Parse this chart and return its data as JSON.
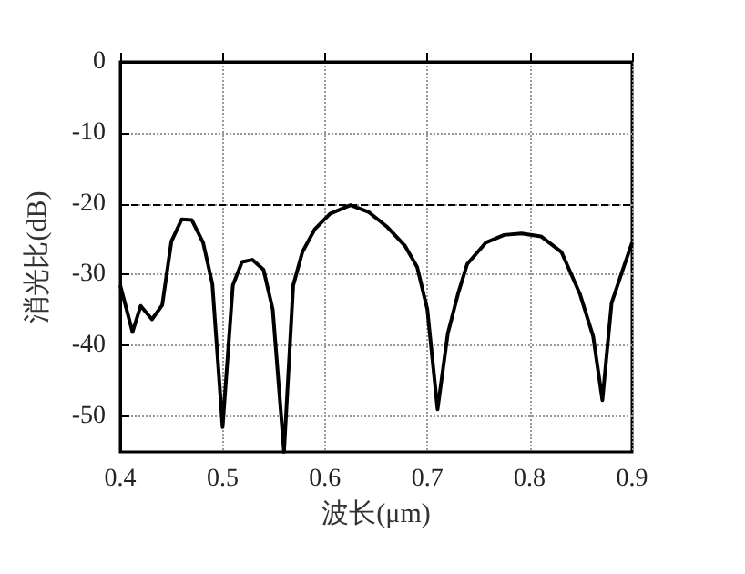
{
  "chart_data": {
    "type": "line",
    "xlabel": "波长(μm)",
    "ylabel": "消光比(dB)",
    "xlim": [
      0.4,
      0.9
    ],
    "xticks": [
      0.4,
      0.5,
      0.6,
      0.7,
      0.8,
      0.9
    ],
    "ylim": [
      -55,
      0
    ],
    "yticks": [
      -50,
      -40,
      -30,
      -20,
      -10,
      0
    ],
    "grid": true,
    "marker": "none",
    "line_style": "solid",
    "ref_lines": [
      {
        "axis": "y",
        "value": -20,
        "color": "#000000",
        "line_style": "dashed"
      }
    ],
    "series": [
      {
        "color": "#000000",
        "x": [
          0.4,
          0.412,
          0.42,
          0.431,
          0.441,
          0.45,
          0.46,
          0.47,
          0.481,
          0.49,
          0.5,
          0.51,
          0.519,
          0.529,
          0.54,
          0.549,
          0.56,
          0.569,
          0.578,
          0.59,
          0.605,
          0.625,
          0.643,
          0.661,
          0.678,
          0.69,
          0.7,
          0.71,
          0.72,
          0.73,
          0.739,
          0.757,
          0.775,
          0.792,
          0.811,
          0.831,
          0.849,
          0.862,
          0.871,
          0.88,
          0.89,
          0.9
        ],
        "values": [
          -31.5,
          -38.1,
          -34.4,
          -36.3,
          -34.3,
          -25.3,
          -22.2,
          -22.3,
          -25.5,
          -31.3,
          -51.5,
          -31.5,
          -28.2,
          -27.9,
          -29.3,
          -34.9,
          -55,
          -31.5,
          -26.8,
          -23.6,
          -21.4,
          -20.2,
          -21.2,
          -23.3,
          -25.9,
          -28.9,
          -34.9,
          -49,
          -38.3,
          -32.7,
          -28.5,
          -25.5,
          -24.4,
          -24.2,
          -24.6,
          -26.8,
          -32.7,
          -38.7,
          -47.7,
          -34,
          -29.7,
          -25.5
        ]
      }
    ]
  }
}
